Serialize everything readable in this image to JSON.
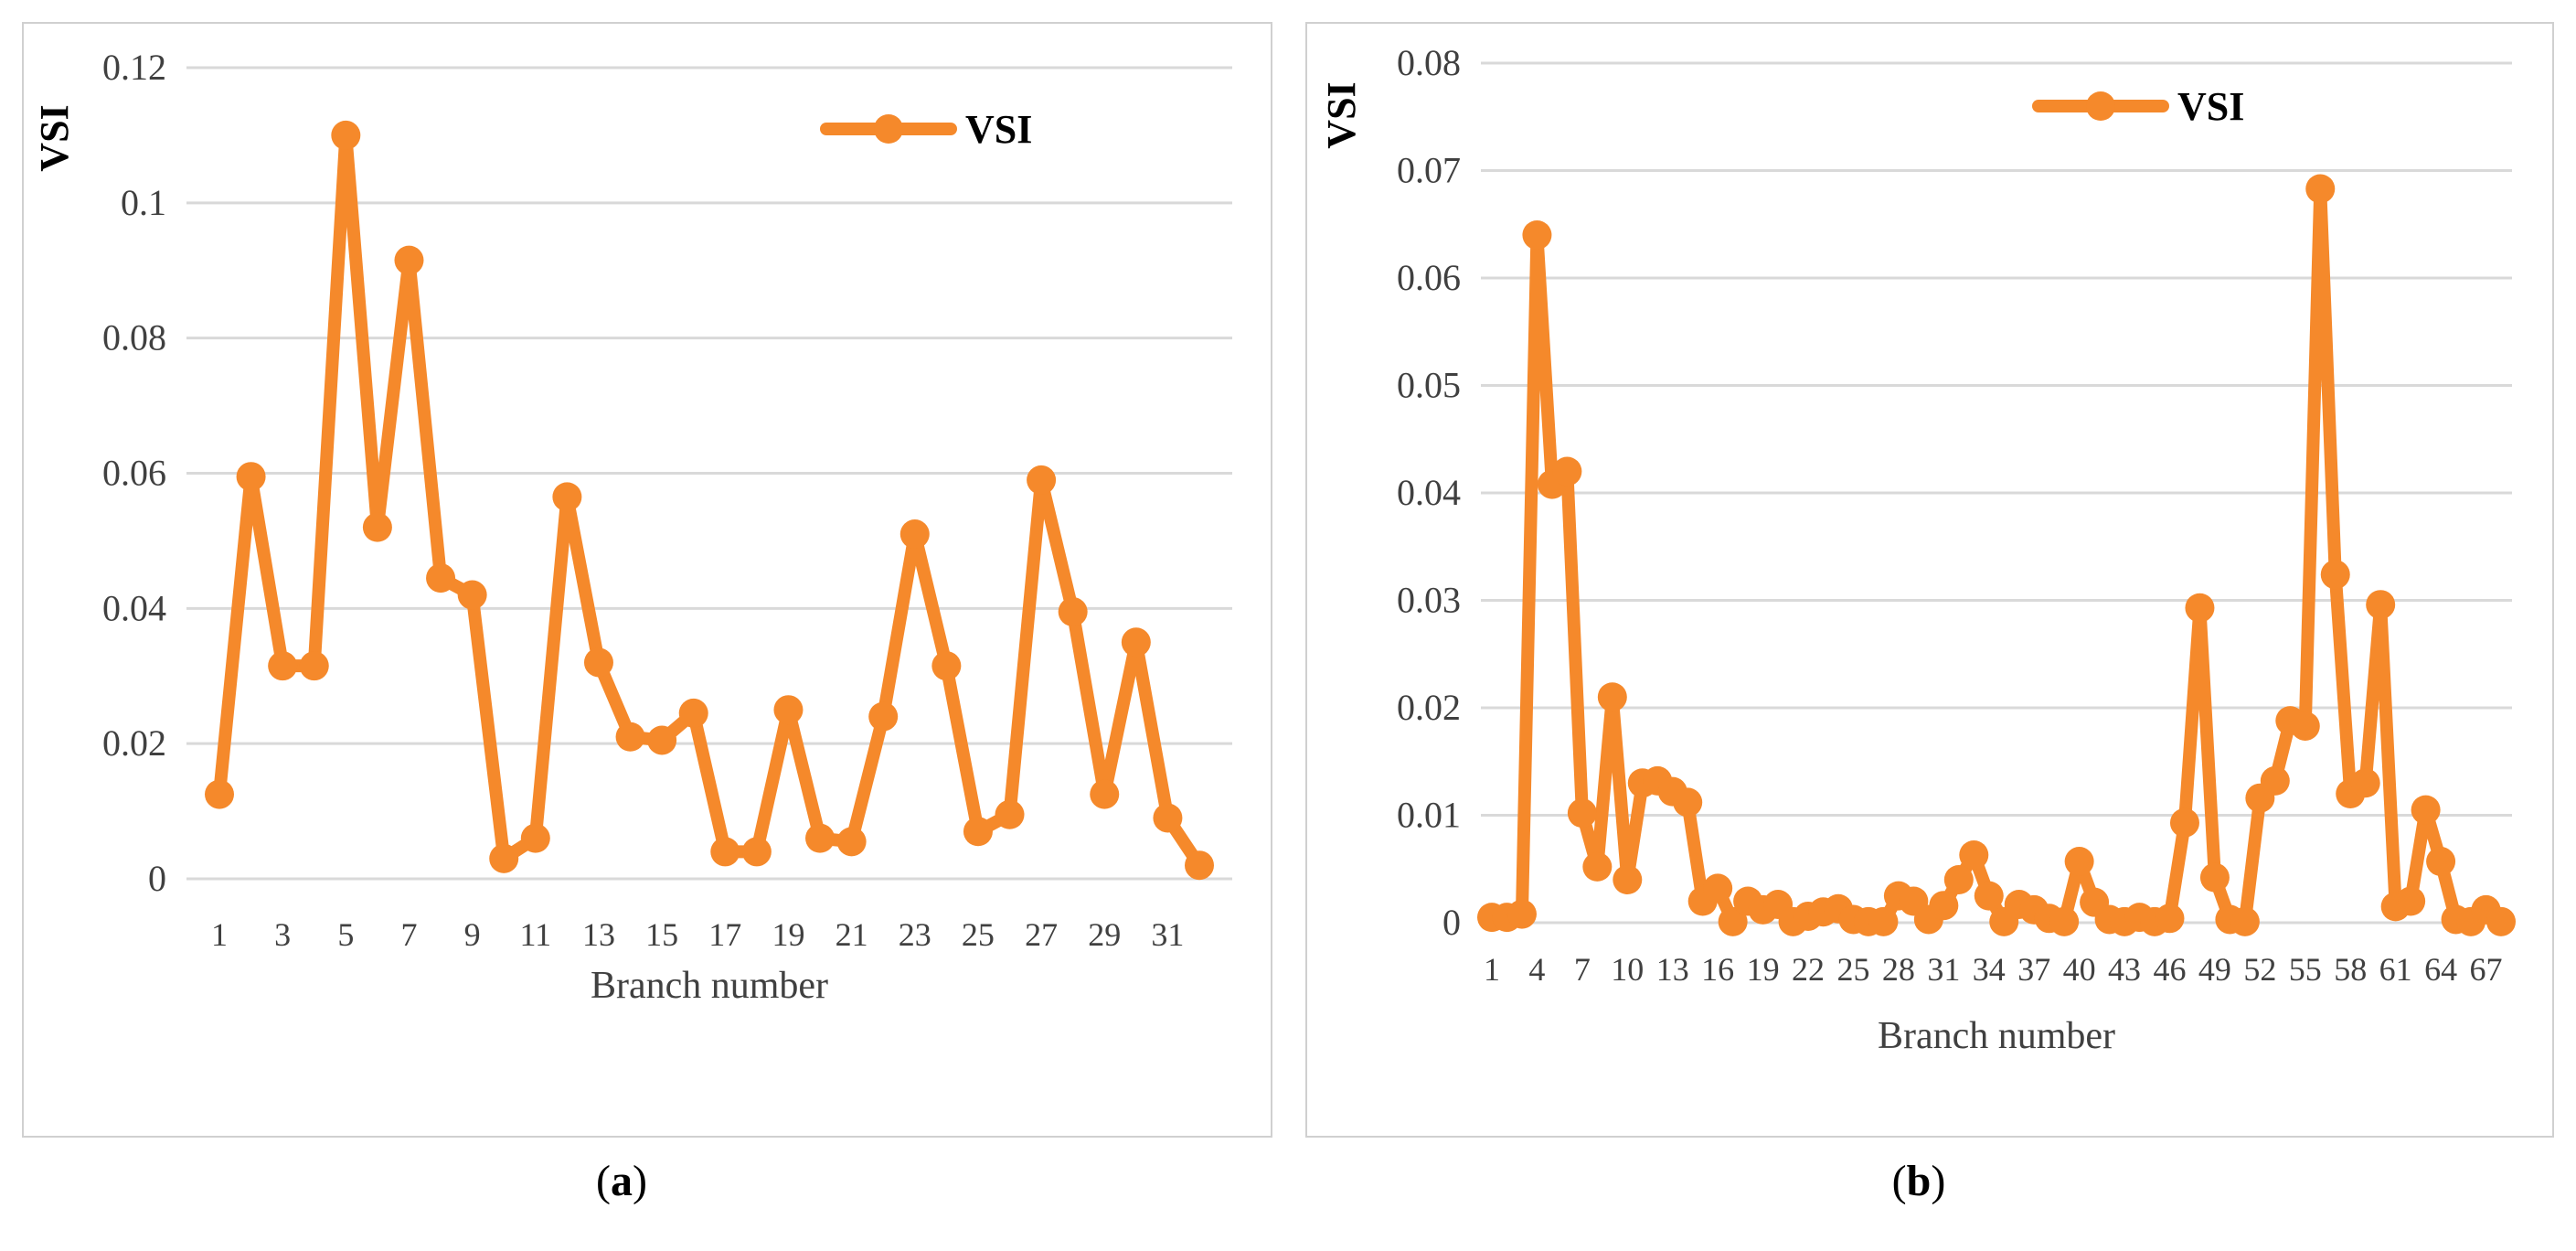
{
  "colors": {
    "series": "#F5892B",
    "grid": "#d9d9d9",
    "text": "#404040"
  },
  "chart_data": [
    {
      "id": "a",
      "type": "line",
      "ylabel": "VSI",
      "xlabel": "Branch number",
      "legend": "VSI",
      "legend_position": "top-right",
      "ylim": [
        0,
        0.12
      ],
      "yticks": [
        "0",
        "0.02",
        "0.04",
        "0.06",
        "0.08",
        "0.1",
        "0.12"
      ],
      "xtick_labels": [
        "1",
        "3",
        "5",
        "7",
        "9",
        "11",
        "13",
        "15",
        "17",
        "19",
        "21",
        "23",
        "25",
        "27",
        "29",
        "31"
      ],
      "x": [
        1,
        2,
        3,
        4,
        5,
        6,
        7,
        8,
        9,
        10,
        11,
        12,
        13,
        14,
        15,
        16,
        17,
        18,
        19,
        20,
        21,
        22,
        23,
        24,
        25,
        26,
        27,
        28,
        29,
        30,
        31,
        32
      ],
      "values": [
        0.0125,
        0.0595,
        0.0315,
        0.0315,
        0.11,
        0.052,
        0.0915,
        0.0445,
        0.042,
        0.003,
        0.006,
        0.0565,
        0.032,
        0.021,
        0.0205,
        0.0245,
        0.004,
        0.004,
        0.025,
        0.006,
        0.0055,
        0.024,
        0.051,
        0.0315,
        0.007,
        0.0095,
        0.059,
        0.0395,
        0.0125,
        0.035,
        0.009,
        0.002
      ],
      "caption": "a"
    },
    {
      "id": "b",
      "type": "line",
      "ylabel": "VSI",
      "xlabel": "Branch number",
      "legend": "VSI",
      "legend_position": "top-right",
      "ylim": [
        0,
        0.08
      ],
      "yticks": [
        "0",
        "0.01",
        "0.02",
        "0.03",
        "0.04",
        "0.05",
        "0.06",
        "0.07",
        "0.08"
      ],
      "xtick_labels": [
        "1",
        "4",
        "7",
        "10",
        "13",
        "16",
        "19",
        "22",
        "25",
        "28",
        "31",
        "34",
        "37",
        "40",
        "43",
        "46",
        "49",
        "52",
        "55",
        "58",
        "61",
        "64",
        "67"
      ],
      "x": [
        1,
        2,
        3,
        4,
        5,
        6,
        7,
        8,
        9,
        10,
        11,
        12,
        13,
        14,
        15,
        16,
        17,
        18,
        19,
        20,
        21,
        22,
        23,
        24,
        25,
        26,
        27,
        28,
        29,
        30,
        31,
        32,
        33,
        34,
        35,
        36,
        37,
        38,
        39,
        40,
        41,
        42,
        43,
        44,
        45,
        46,
        47,
        48,
        49,
        50,
        51,
        52,
        53,
        54,
        55,
        56,
        57,
        58,
        59,
        60,
        61,
        62,
        63,
        64,
        65,
        66,
        67,
        68
      ],
      "values": [
        0.0005,
        0.0005,
        0.0008,
        0.064,
        0.0408,
        0.042,
        0.0102,
        0.0052,
        0.021,
        0.004,
        0.013,
        0.0132,
        0.0122,
        0.0112,
        0.002,
        0.0032,
        0.0001,
        0.002,
        0.0012,
        0.0017,
        0.0001,
        0.0006,
        0.001,
        0.0013,
        0.0003,
        0.0001,
        0.0001,
        0.0025,
        0.002,
        0.0003,
        0.0016,
        0.004,
        0.0063,
        0.0025,
        0.0001,
        0.0017,
        0.0012,
        0.0004,
        0.0001,
        0.0057,
        0.0019,
        0.0003,
        0.0001,
        0.0005,
        0.0001,
        0.0004,
        0.0093,
        0.0293,
        0.0042,
        0.0003,
        0.0001,
        0.0116,
        0.0132,
        0.0188,
        0.0183,
        0.0683,
        0.0324,
        0.012,
        0.013,
        0.0296,
        0.0015,
        0.002,
        0.0105,
        0.0057,
        0.0003,
        0.0001,
        0.0012,
        0.0001
      ],
      "caption": "b"
    }
  ]
}
